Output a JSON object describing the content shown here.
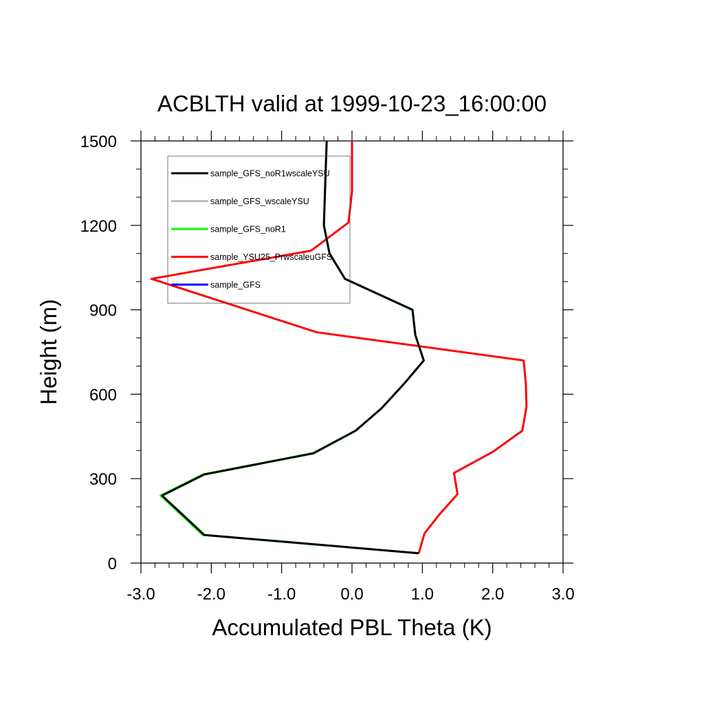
{
  "chart_data": {
    "type": "line",
    "title": "ACBLTH valid at 1999-10-23_16:00:00",
    "xlabel": "Accumulated PBL Theta (K)",
    "ylabel": "Height (m)",
    "xlim": [
      -3.0,
      3.0
    ],
    "ylim": [
      0,
      1500
    ],
    "xticks": [
      -3.0,
      -2.0,
      -1.0,
      0.0,
      1.0,
      2.0,
      3.0
    ],
    "xtick_labels": [
      "-3.0",
      "-2.0",
      "-1.0",
      "0.0",
      "1.0",
      "2.0",
      "3.0"
    ],
    "yticks": [
      0,
      300,
      600,
      900,
      1200,
      1500
    ],
    "ytick_labels": [
      "0",
      "300",
      "600",
      "900",
      "1200",
      "1500"
    ],
    "grid": false,
    "legend_position": "top-left",
    "series": [
      {
        "name": "sample_GFS_noR1wscaleYSU",
        "color": "#000000",
        "x": [
          0.95,
          -2.1,
          -2.4,
          -2.7,
          -2.1,
          -0.55,
          0.05,
          0.42,
          0.75,
          1.02,
          0.9,
          0.86,
          -0.1,
          -0.32,
          -0.4,
          -0.38,
          -0.36
        ],
        "y": [
          35,
          100,
          170,
          240,
          315,
          390,
          470,
          550,
          640,
          720,
          810,
          900,
          1010,
          1100,
          1200,
          1350,
          1500
        ]
      },
      {
        "name": "sample_GFS_wscaleYSU",
        "color": "#bdbdbd",
        "x": [
          0.95,
          -2.1,
          -2.4,
          -2.7,
          -2.1,
          -0.55,
          0.05,
          0.42,
          0.75,
          1.02,
          0.9,
          0.86,
          -0.1,
          -0.32,
          -0.4,
          -0.38,
          -0.36
        ],
        "y": [
          35,
          100,
          170,
          240,
          315,
          390,
          470,
          550,
          640,
          720,
          810,
          900,
          1010,
          1100,
          1200,
          1350,
          1500
        ]
      },
      {
        "name": "sample_GFS_noR1",
        "color": "#00ff00",
        "x": [
          0.95,
          -2.12,
          -2.42,
          -2.72,
          -2.12,
          -0.56,
          0.05,
          0.42,
          0.75,
          1.02,
          0.9,
          0.86,
          -0.1,
          -0.32,
          -0.4,
          -0.38,
          -0.36
        ],
        "y": [
          35,
          100,
          170,
          240,
          315,
          390,
          470,
          550,
          640,
          720,
          810,
          900,
          1010,
          1100,
          1200,
          1350,
          1500
        ]
      },
      {
        "name": "sample_YSU25_PrwscaleuGFS",
        "color": "#ff0000",
        "x": [
          0.95,
          1.03,
          1.25,
          1.5,
          1.45,
          2.0,
          2.42,
          2.48,
          2.47,
          2.44,
          -0.5,
          -2.85,
          -0.58,
          -0.05,
          0.0,
          0.0
        ],
        "y": [
          35,
          105,
          175,
          245,
          320,
          395,
          470,
          555,
          640,
          720,
          820,
          1010,
          1110,
          1210,
          1320,
          1500
        ]
      },
      {
        "name": "sample_GFS",
        "color": "#0000ff",
        "x": [],
        "y": []
      }
    ]
  }
}
